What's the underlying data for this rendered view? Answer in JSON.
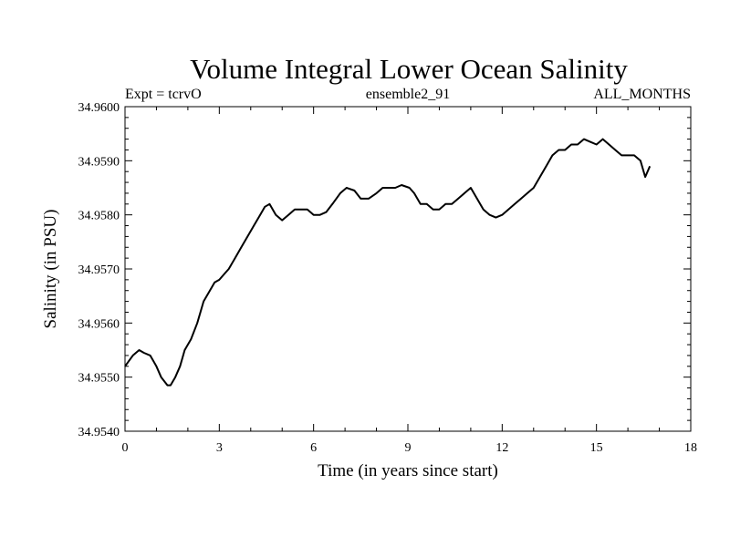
{
  "chart_data": {
    "type": "line",
    "title": "Volume Integral Lower Ocean Salinity",
    "subtitle_left": "Expt = tcrvO",
    "subtitle_center": "ensemble2_91",
    "subtitle_right": "ALL_MONTHS",
    "xlabel": "Time (in years since start)",
    "ylabel": "Salinity (in PSU)",
    "xlim": [
      0,
      18
    ],
    "ylim": [
      34.954,
      34.96
    ],
    "x_ticks": [
      0,
      3,
      6,
      9,
      12,
      15,
      18
    ],
    "x_tick_labels": [
      "0",
      "3",
      "6",
      "9",
      "12",
      "15",
      "18"
    ],
    "y_ticks": [
      34.954,
      34.955,
      34.956,
      34.957,
      34.958,
      34.959,
      34.96
    ],
    "y_tick_labels": [
      "34.9540",
      "34.9550",
      "34.9560",
      "34.9570",
      "34.9580",
      "34.9590",
      "34.9600"
    ],
    "grid": false,
    "series": [
      {
        "name": "Salinity",
        "x": [
          0,
          0.25,
          0.45,
          0.6,
          0.8,
          1.0,
          1.15,
          1.35,
          1.45,
          1.6,
          1.75,
          1.9,
          2.1,
          2.3,
          2.5,
          2.7,
          2.85,
          3.0,
          3.15,
          3.3,
          3.5,
          3.7,
          3.9,
          4.1,
          4.3,
          4.45,
          4.6,
          4.8,
          5.0,
          5.2,
          5.4,
          5.6,
          5.8,
          6.0,
          6.2,
          6.4,
          6.6,
          6.85,
          7.05,
          7.3,
          7.5,
          7.75,
          8.0,
          8.2,
          8.4,
          8.6,
          8.8,
          9.05,
          9.2,
          9.4,
          9.6,
          9.8,
          10.0,
          10.2,
          10.4,
          10.6,
          10.8,
          11.0,
          11.2,
          11.4,
          11.6,
          11.8,
          12.0,
          12.2,
          12.4,
          12.6,
          12.8,
          13.0,
          13.2,
          13.4,
          13.6,
          13.8,
          14.0,
          14.2,
          14.4,
          14.6,
          14.8,
          15.0,
          15.2,
          15.4,
          15.6,
          15.8,
          16.0,
          16.2,
          16.4,
          16.55,
          16.7
        ],
        "values": [
          34.9552,
          34.9554,
          34.9555,
          34.95545,
          34.9554,
          34.9552,
          34.955,
          34.95485,
          34.95485,
          34.955,
          34.9552,
          34.9555,
          34.9557,
          34.956,
          34.9564,
          34.9566,
          34.95675,
          34.9568,
          34.9569,
          34.957,
          34.9572,
          34.9574,
          34.9576,
          34.9578,
          34.958,
          34.95815,
          34.9582,
          34.958,
          34.9579,
          34.958,
          34.9581,
          34.9581,
          34.9581,
          34.958,
          34.958,
          34.95805,
          34.9582,
          34.9584,
          34.9585,
          34.95845,
          34.9583,
          34.9583,
          34.9584,
          34.9585,
          34.9585,
          34.9585,
          34.95855,
          34.9585,
          34.9584,
          34.9582,
          34.9582,
          34.9581,
          34.9581,
          34.9582,
          34.9582,
          34.9583,
          34.9584,
          34.9585,
          34.9583,
          34.9581,
          34.958,
          34.95795,
          34.958,
          34.9581,
          34.9582,
          34.9583,
          34.9584,
          34.9585,
          34.9587,
          34.9589,
          34.9591,
          34.9592,
          34.9592,
          34.9593,
          34.9593,
          34.9594,
          34.95935,
          34.9593,
          34.9594,
          34.9593,
          34.9592,
          34.9591,
          34.9591,
          34.9591,
          34.959,
          34.9587,
          34.9589
        ]
      }
    ]
  }
}
